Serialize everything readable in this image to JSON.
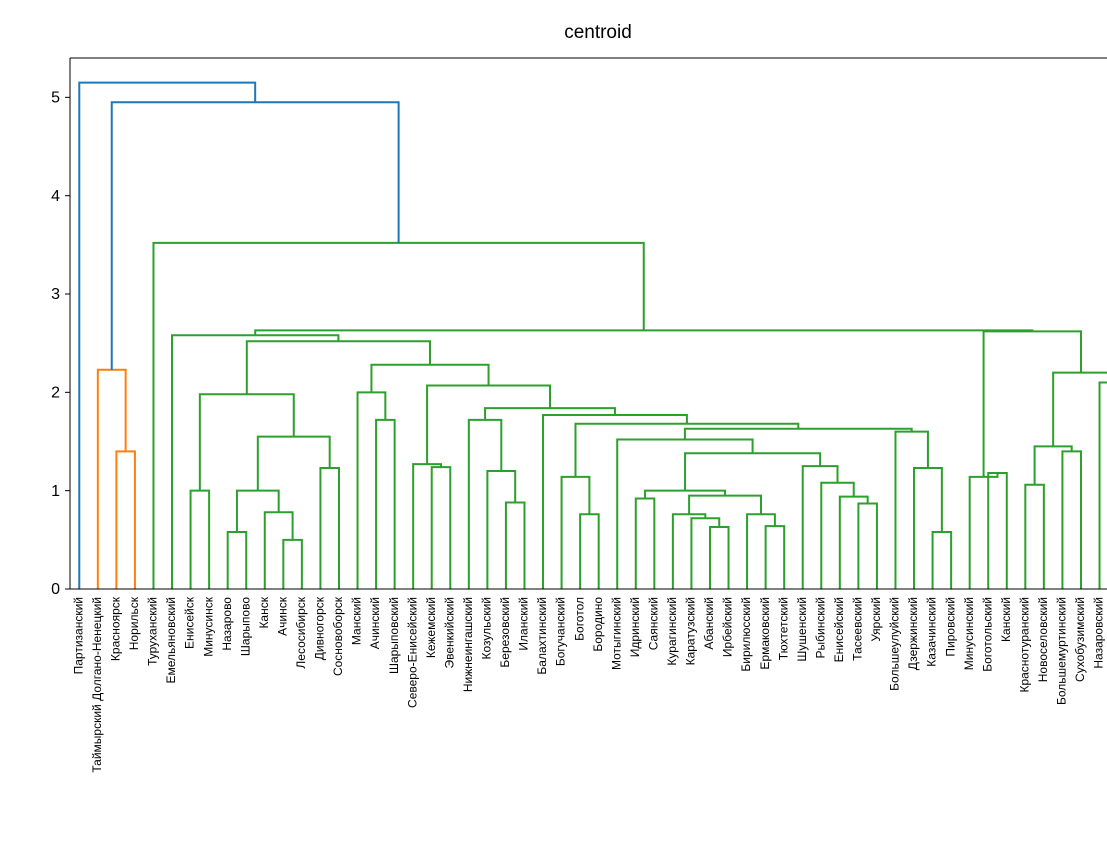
{
  "chart_data": {
    "type": "dendrogram",
    "title": "centroid",
    "ylim": [
      0,
      5.4
    ],
    "yticks": [
      0,
      1,
      2,
      3,
      4,
      5
    ],
    "tree": {
      "height": 5.15,
      "color": "#1f77b4",
      "children": [
        "Партизанский",
        {
          "height": 4.95,
          "children": [
            {
              "height": 2.23,
              "color": "#ff7f0e",
              "children": [
                "Таймырский Долгано-Ненецкий",
                {
                  "height": 1.4,
                  "children": [
                    "Красноярск",
                    "Норильск"
                  ]
                }
              ]
            },
            {
              "height": 3.52,
              "color": "#2ca02c",
              "children": [
                "Туруханский",
                {
                  "height": 2.63,
                  "children": [
                    {
                      "height": 2.58,
                      "children": [
                        "Емельяновский",
                        {
                          "height": 2.52,
                          "children": [
                            {
                              "height": 1.98,
                              "children": [
                                {
                                  "height": 1.0,
                                  "children": [
                                    "Енисейск",
                                    "Минусинск"
                                  ]
                                },
                                {
                                  "height": 1.55,
                                  "children": [
                                    {
                                      "height": 1.0,
                                      "children": [
                                        {
                                          "height": 0.58,
                                          "children": [
                                            "Назарово",
                                            "Шарыпово"
                                          ]
                                        },
                                        {
                                          "height": 0.78,
                                          "children": [
                                            "Канск",
                                            {
                                              "height": 0.5,
                                              "children": [
                                                "Ачинск",
                                                "Лесосибирск"
                                              ]
                                            }
                                          ]
                                        }
                                      ]
                                    },
                                    {
                                      "height": 1.23,
                                      "children": [
                                        "Дивногорск",
                                        "Сосновоборск"
                                      ]
                                    }
                                  ]
                                }
                              ]
                            },
                            {
                              "height": 2.28,
                              "children": [
                                {
                                  "height": 2.0,
                                  "children": [
                                    "Манский",
                                    {
                                      "height": 1.72,
                                      "children": [
                                        "Ачинский",
                                        "Шарыповский"
                                      ]
                                    }
                                  ]
                                },
                                {
                                  "height": 2.07,
                                  "children": [
                                    {
                                      "height": 1.27,
                                      "children": [
                                        "Северо-Енисейский",
                                        {
                                          "height": 1.24,
                                          "children": [
                                            "Кежемский",
                                            "Эвенкийский"
                                          ]
                                        }
                                      ]
                                    },
                                    {
                                      "height": 1.84,
                                      "children": [
                                        {
                                          "height": 1.72,
                                          "children": [
                                            "Нижнеингашский",
                                            {
                                              "height": 1.2,
                                              "children": [
                                                "Козульский",
                                                {
                                                  "height": 0.88,
                                                  "children": [
                                                    "Березовский",
                                                    "Иланский"
                                                  ]
                                                }
                                              ]
                                            }
                                          ]
                                        },
                                        {
                                          "height": 1.77,
                                          "children": [
                                            "Балахтинский",
                                            {
                                              "height": 1.68,
                                              "children": [
                                                {
                                                  "height": 1.14,
                                                  "children": [
                                                    "Богучанский",
                                                    {
                                                      "height": 0.76,
                                                      "children": [
                                                        "Боготол",
                                                        "Бородино"
                                                      ]
                                                    }
                                                  ]
                                                },
                                                {
                                                  "height": 1.63,
                                                  "children": [
                                                    {
                                                      "height": 1.52,
                                                      "children": [
                                                        "Мотыгинский",
                                                        {
                                                          "height": 1.38,
                                                          "children": [
                                                            {
                                                              "height": 1.0,
                                                              "children": [
                                                                {
                                                                  "height": 0.92,
                                                                  "children": [
                                                                    "Идринский",
                                                                    "Саянский"
                                                                  ]
                                                                },
                                                                {
                                                                  "height": 0.95,
                                                                  "children": [
                                                                    {
                                                                      "height": 0.76,
                                                                      "children": [
                                                                        "Курагинский",
                                                                        {
                                                                          "height": 0.72,
                                                                          "children": [
                                                                            "Каратузский",
                                                                            {
                                                                              "height": 0.63,
                                                                              "children": [
                                                                                "Абанский",
                                                                                "Ирбейский"
                                                                              ]
                                                                            }
                                                                          ]
                                                                        }
                                                                      ]
                                                                    },
                                                                    {
                                                                      "height": 0.76,
                                                                      "children": [
                                                                        "Бирилюсский",
                                                                        {
                                                                          "height": 0.64,
                                                                          "children": [
                                                                            "Ермаковский",
                                                                            "Тюхтетский"
                                                                          ]
                                                                        }
                                                                      ]
                                                                    }
                                                                  ]
                                                                }
                                                              ]
                                                            },
                                                            {
                                                              "height": 1.25,
                                                              "children": [
                                                                "Шушенский",
                                                                {
                                                                  "height": 1.08,
                                                                  "children": [
                                                                    "Рыбинский",
                                                                    {
                                                                      "height": 0.94,
                                                                      "children": [
                                                                        "Енисейский",
                                                                        {
                                                                          "height": 0.87,
                                                                          "children": [
                                                                            "Тасеевский",
                                                                            "Уярский"
                                                                          ]
                                                                        }
                                                                      ]
                                                                    }
                                                                  ]
                                                                }
                                                              ]
                                                            }
                                                          ]
                                                        }
                                                      ]
                                                    },
                                                    {
                                                      "height": 1.6,
                                                      "children": [
                                                        "Большеулуйский",
                                                        {
                                                          "height": 1.23,
                                                          "children": [
                                                            "Дзержинский",
                                                            {
                                                              "height": 0.58,
                                                              "children": [
                                                                "Казачинский",
                                                                "Пировский"
                                                              ]
                                                            }
                                                          ]
                                                        }
                                                      ]
                                                    }
                                                  ]
                                                }
                                              ]
                                            }
                                          ]
                                        }
                                      ]
                                    }
                                  ]
                                }
                              ]
                            }
                          ]
                        }
                      ]
                    },
                    {
                      "height": 2.62,
                      "children": [
                        {
                          "height": 1.14,
                          "children": [
                            "Минусинский",
                            {
                              "height": 1.18,
                              "children": [
                                "Боготольский",
                                "Канский"
                              ]
                            }
                          ]
                        },
                        {
                          "height": 2.2,
                          "children": [
                            {
                              "height": 1.45,
                              "children": [
                                {
                                  "height": 1.06,
                                  "children": [
                                    "Краснотуранский",
                                    "Новоселовский"
                                  ]
                                },
                                {
                                  "height": 1.4,
                                  "children": [
                                    "Большемуртинский",
                                    "Сухобузимский"
                                  ]
                                }
                              ]
                            },
                            {
                              "height": 2.1,
                              "children": [
                                "Назаровский",
                                null
                              ]
                            }
                          ]
                        }
                      ]
                    }
                  ]
                }
              ]
            }
          ]
        }
      ]
    }
  }
}
